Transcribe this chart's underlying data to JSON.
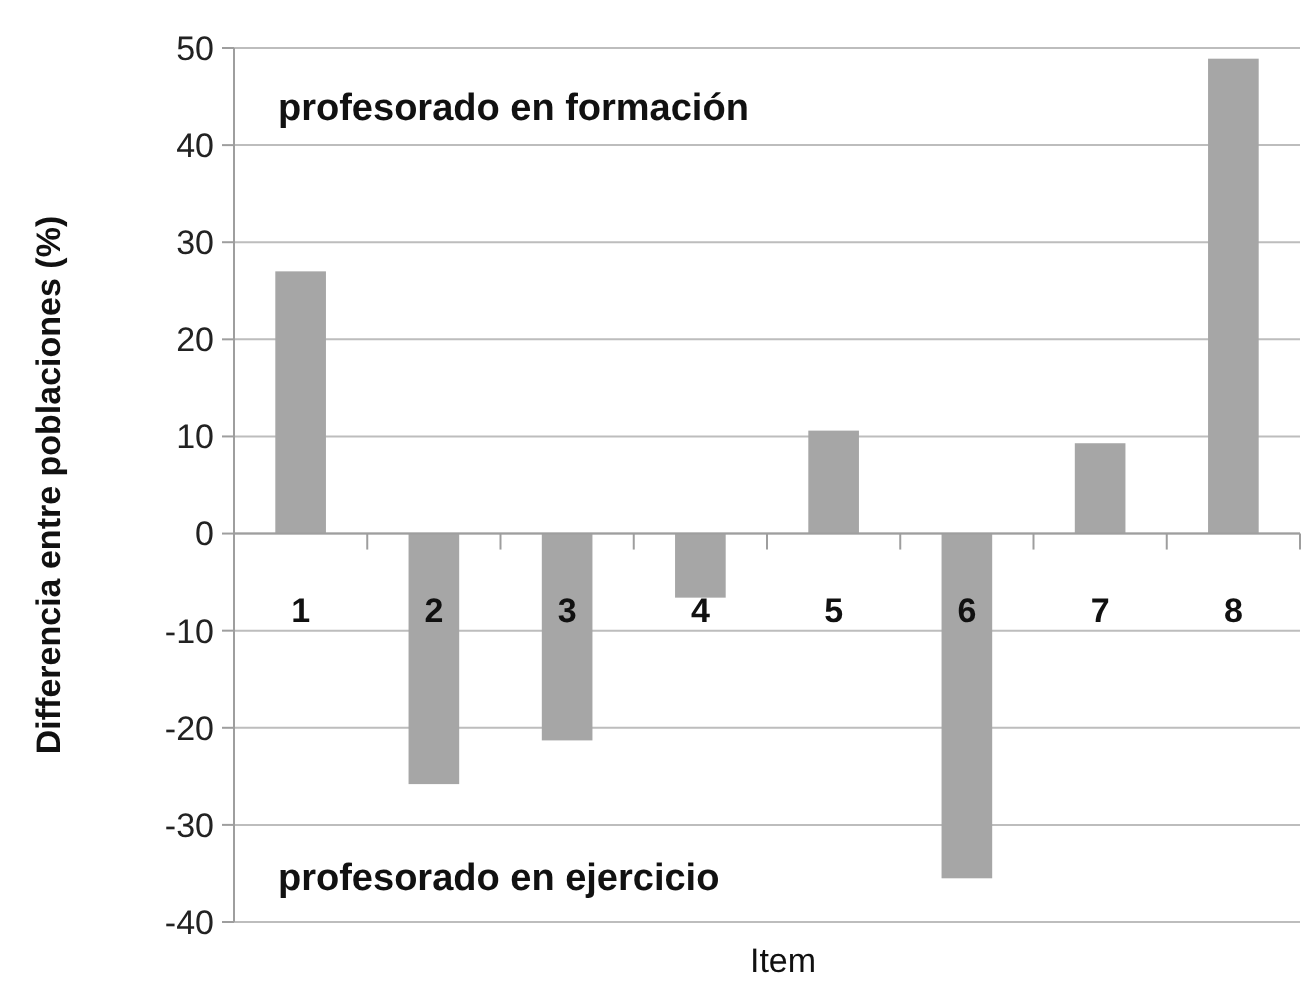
{
  "chart_data": {
    "type": "bar",
    "xlabel": "Item",
    "ylabel": "Differencia entre poblaciones (%)",
    "categories": [
      "1",
      "2",
      "3",
      "4",
      "5",
      "6",
      "7",
      "8"
    ],
    "values": [
      27,
      -25.8,
      -21.3,
      -6.6,
      10.6,
      -35.5,
      9.3,
      48.9
    ],
    "color": "#a6a6a6",
    "ylim": [
      -40,
      50
    ],
    "yticks": [
      -40,
      -30,
      -20,
      -10,
      0,
      10,
      20,
      30,
      40,
      50
    ],
    "grid": "y",
    "annotations": [
      "profesorado en formación",
      "profesorado en ejercicio"
    ]
  }
}
